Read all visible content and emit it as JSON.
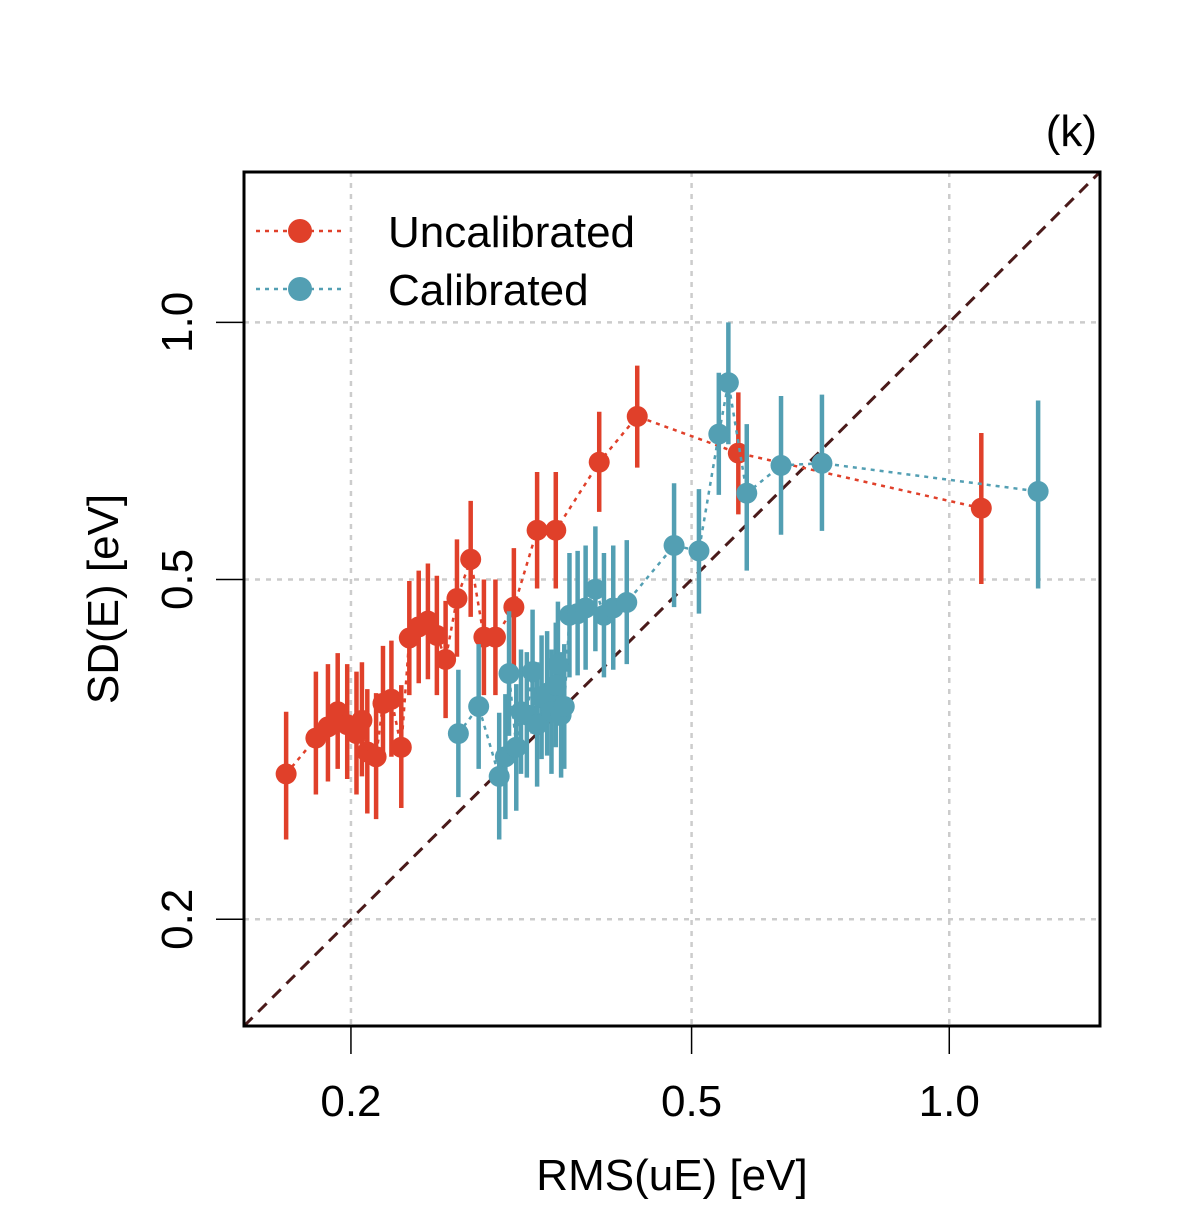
{
  "panel_label": "(k)",
  "colors": {
    "uncalibrated": "#E0402A",
    "calibrated": "#539FB3",
    "identity_line": "#4A1A1A",
    "grid": "#CCCCCC",
    "frame": "#000000"
  },
  "chart_data": {
    "type": "scatter",
    "x_scale": "log",
    "y_scale": "log",
    "xlabel": "RMS(uE) [eV]",
    "ylabel": "SD(E) [eV]",
    "xlim": [
      0.15,
      1.5
    ],
    "ylim": [
      0.15,
      1.5
    ],
    "x_ticks": [
      0.2,
      0.5,
      1.0
    ],
    "x_tick_labels": [
      "0.2",
      "0.5",
      "1.0"
    ],
    "y_ticks": [
      0.2,
      0.5,
      1.0
    ],
    "y_tick_labels": [
      "0.2",
      "0.5",
      "1.0"
    ],
    "grid": true,
    "legend_position": "top-left",
    "identity_line": true,
    "series": [
      {
        "name": "Uncalibrated",
        "color": "#E0402A",
        "points": [
          {
            "x": 0.168,
            "y": 0.296,
            "lo": 0.248,
            "hi": 0.35
          },
          {
            "x": 0.182,
            "y": 0.326,
            "lo": 0.28,
            "hi": 0.39
          },
          {
            "x": 0.188,
            "y": 0.336,
            "lo": 0.29,
            "hi": 0.398
          },
          {
            "x": 0.193,
            "y": 0.35,
            "lo": 0.3,
            "hi": 0.41
          },
          {
            "x": 0.198,
            "y": 0.338,
            "lo": 0.292,
            "hi": 0.398
          },
          {
            "x": 0.203,
            "y": 0.33,
            "lo": 0.28,
            "hi": 0.39
          },
          {
            "x": 0.206,
            "y": 0.342,
            "lo": 0.294,
            "hi": 0.4
          },
          {
            "x": 0.209,
            "y": 0.314,
            "lo": 0.266,
            "hi": 0.372
          },
          {
            "x": 0.214,
            "y": 0.31,
            "lo": 0.262,
            "hi": 0.368
          },
          {
            "x": 0.218,
            "y": 0.358,
            "lo": 0.306,
            "hi": 0.418
          },
          {
            "x": 0.223,
            "y": 0.362,
            "lo": 0.31,
            "hi": 0.424
          },
          {
            "x": 0.229,
            "y": 0.318,
            "lo": 0.27,
            "hi": 0.376
          },
          {
            "x": 0.234,
            "y": 0.427,
            "lo": 0.366,
            "hi": 0.498
          },
          {
            "x": 0.24,
            "y": 0.44,
            "lo": 0.378,
            "hi": 0.512
          },
          {
            "x": 0.246,
            "y": 0.447,
            "lo": 0.382,
            "hi": 0.522
          },
          {
            "x": 0.252,
            "y": 0.43,
            "lo": 0.366,
            "hi": 0.505
          },
          {
            "x": 0.258,
            "y": 0.403,
            "lo": 0.344,
            "hi": 0.472
          },
          {
            "x": 0.266,
            "y": 0.475,
            "lo": 0.406,
            "hi": 0.557
          },
          {
            "x": 0.276,
            "y": 0.528,
            "lo": 0.452,
            "hi": 0.618
          },
          {
            "x": 0.286,
            "y": 0.428,
            "lo": 0.366,
            "hi": 0.5
          },
          {
            "x": 0.295,
            "y": 0.428,
            "lo": 0.366,
            "hi": 0.5
          },
          {
            "x": 0.31,
            "y": 0.464,
            "lo": 0.396,
            "hi": 0.544
          },
          {
            "x": 0.33,
            "y": 0.571,
            "lo": 0.488,
            "hi": 0.668
          },
          {
            "x": 0.347,
            "y": 0.571,
            "lo": 0.488,
            "hi": 0.668
          },
          {
            "x": 0.39,
            "y": 0.686,
            "lo": 0.6,
            "hi": 0.786
          },
          {
            "x": 0.432,
            "y": 0.776,
            "lo": 0.676,
            "hi": 0.89
          },
          {
            "x": 0.567,
            "y": 0.703,
            "lo": 0.596,
            "hi": 0.828
          },
          {
            "x": 1.09,
            "y": 0.606,
            "lo": 0.494,
            "hi": 0.742
          }
        ]
      },
      {
        "name": "Calibrated",
        "color": "#539FB3",
        "points": [
          {
            "x": 0.267,
            "y": 0.33,
            "lo": 0.278,
            "hi": 0.392
          },
          {
            "x": 0.282,
            "y": 0.355,
            "lo": 0.3,
            "hi": 0.42
          },
          {
            "x": 0.298,
            "y": 0.294,
            "lo": 0.248,
            "hi": 0.349
          },
          {
            "x": 0.303,
            "y": 0.31,
            "lo": 0.262,
            "hi": 0.367
          },
          {
            "x": 0.306,
            "y": 0.388,
            "lo": 0.328,
            "hi": 0.459
          },
          {
            "x": 0.312,
            "y": 0.318,
            "lo": 0.268,
            "hi": 0.377
          },
          {
            "x": 0.316,
            "y": 0.35,
            "lo": 0.296,
            "hi": 0.414
          },
          {
            "x": 0.321,
            "y": 0.347,
            "lo": 0.293,
            "hi": 0.411
          },
          {
            "x": 0.326,
            "y": 0.39,
            "lo": 0.33,
            "hi": 0.461
          },
          {
            "x": 0.33,
            "y": 0.338,
            "lo": 0.286,
            "hi": 0.4
          },
          {
            "x": 0.334,
            "y": 0.364,
            "lo": 0.308,
            "hi": 0.43
          },
          {
            "x": 0.339,
            "y": 0.368,
            "lo": 0.311,
            "hi": 0.435
          },
          {
            "x": 0.343,
            "y": 0.35,
            "lo": 0.296,
            "hi": 0.414
          },
          {
            "x": 0.347,
            "y": 0.376,
            "lo": 0.318,
            "hi": 0.445
          },
          {
            "x": 0.349,
            "y": 0.398,
            "lo": 0.337,
            "hi": 0.471
          },
          {
            "x": 0.352,
            "y": 0.347,
            "lo": 0.293,
            "hi": 0.411
          },
          {
            "x": 0.355,
            "y": 0.355,
            "lo": 0.3,
            "hi": 0.42
          },
          {
            "x": 0.36,
            "y": 0.454,
            "lo": 0.384,
            "hi": 0.537
          },
          {
            "x": 0.368,
            "y": 0.456,
            "lo": 0.386,
            "hi": 0.54
          },
          {
            "x": 0.376,
            "y": 0.463,
            "lo": 0.392,
            "hi": 0.548
          },
          {
            "x": 0.386,
            "y": 0.487,
            "lo": 0.412,
            "hi": 0.577
          },
          {
            "x": 0.395,
            "y": 0.454,
            "lo": 0.384,
            "hi": 0.537
          },
          {
            "x": 0.405,
            "y": 0.463,
            "lo": 0.392,
            "hi": 0.548
          },
          {
            "x": 0.42,
            "y": 0.47,
            "lo": 0.398,
            "hi": 0.556
          },
          {
            "x": 0.477,
            "y": 0.548,
            "lo": 0.464,
            "hi": 0.648
          },
          {
            "x": 0.51,
            "y": 0.54,
            "lo": 0.456,
            "hi": 0.638
          },
          {
            "x": 0.538,
            "y": 0.74,
            "lo": 0.628,
            "hi": 0.873
          },
          {
            "x": 0.552,
            "y": 0.85,
            "lo": 0.72,
            "hi": 1.0
          },
          {
            "x": 0.58,
            "y": 0.631,
            "lo": 0.512,
            "hi": 0.76
          },
          {
            "x": 0.636,
            "y": 0.68,
            "lo": 0.564,
            "hi": 0.82
          },
          {
            "x": 0.71,
            "y": 0.684,
            "lo": 0.57,
            "hi": 0.823
          },
          {
            "x": 1.27,
            "y": 0.634,
            "lo": 0.488,
            "hi": 0.81
          }
        ]
      }
    ]
  }
}
